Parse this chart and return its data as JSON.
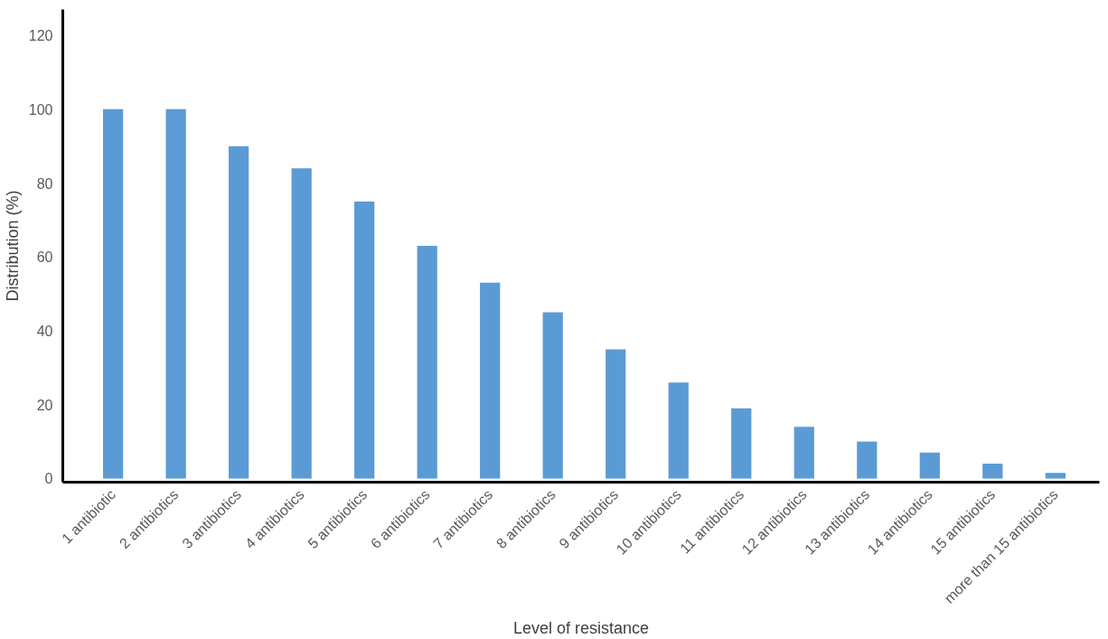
{
  "chart_data": {
    "type": "bar",
    "xlabel": "Level of resistance",
    "ylabel": "Distribution (%)",
    "categories": [
      "1 antibiotic",
      "2 antibiotics",
      "3 antibiotics",
      "4 antibiotics",
      "5 antibiotics",
      "6 antibiotics",
      "7 antibiotics",
      "8 antibiotics",
      "9 antibiotics",
      "10 antibiotics",
      "11 antibiotics",
      "12 antibiotics",
      "13 antibiotics",
      "14 antibiotics",
      "15 antibiotics",
      "more than 15 antibiotics"
    ],
    "values": [
      100,
      100,
      90,
      84,
      75,
      63,
      53,
      45,
      35,
      26,
      19,
      14,
      10,
      7,
      4,
      1.5
    ],
    "color": "#5b9bd5",
    "ylim": [
      -1,
      127
    ],
    "yticks": [
      0,
      20,
      40,
      60,
      80,
      100,
      120
    ],
    "grid": false
  }
}
